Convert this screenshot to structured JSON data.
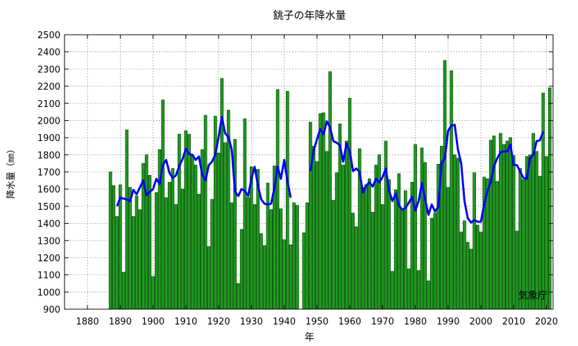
{
  "chart_data": {
    "type": "bar",
    "title": "銚子の年降水量",
    "xlabel": "年",
    "ylabel": "降水量（㎜）",
    "xlim": [
      1873,
      2022
    ],
    "ylim": [
      900,
      2500
    ],
    "x_ticks": [
      1880,
      1890,
      1900,
      1910,
      1920,
      1930,
      1940,
      1950,
      1960,
      1970,
      1980,
      1990,
      2000,
      2010,
      2020
    ],
    "y_ticks": [
      900,
      1000,
      1100,
      1200,
      1300,
      1400,
      1500,
      1600,
      1700,
      1800,
      1900,
      2000,
      2100,
      2200,
      2300,
      2400,
      2500
    ],
    "grid": true,
    "annotation": "気象庁",
    "colors": {
      "bar_fill": "#1f9b1f",
      "bar_stroke": "#0a4d0a",
      "line": "#0000ff"
    },
    "series": [
      {
        "type": "bar",
        "data": [
          [
            1887,
            1700
          ],
          [
            1888,
            1620
          ],
          [
            1889,
            1440
          ],
          [
            1890,
            1625
          ],
          [
            1891,
            1115
          ],
          [
            1892,
            1945
          ],
          [
            1893,
            1610
          ],
          [
            1894,
            1440
          ],
          [
            1895,
            1560
          ],
          [
            1896,
            1480
          ],
          [
            1897,
            1750
          ],
          [
            1898,
            1800
          ],
          [
            1899,
            1680
          ],
          [
            1900,
            1090
          ],
          [
            1901,
            1580
          ],
          [
            1902,
            1830
          ],
          [
            1903,
            2120
          ],
          [
            1904,
            1550
          ],
          [
            1905,
            1640
          ],
          [
            1906,
            1720
          ],
          [
            1907,
            1510
          ],
          [
            1908,
            1920
          ],
          [
            1909,
            1600
          ],
          [
            1910,
            1940
          ],
          [
            1911,
            1920
          ],
          [
            1912,
            1800
          ],
          [
            1913,
            1740
          ],
          [
            1914,
            1570
          ],
          [
            1915,
            1830
          ],
          [
            1916,
            2030
          ],
          [
            1917,
            1265
          ],
          [
            1918,
            1540
          ],
          [
            1919,
            2025
          ],
          [
            1920,
            1810
          ],
          [
            1921,
            2245
          ],
          [
            1922,
            1870
          ],
          [
            1923,
            2060
          ],
          [
            1924,
            1520
          ],
          [
            1925,
            1890
          ],
          [
            1926,
            1050
          ],
          [
            1927,
            1365
          ],
          [
            1928,
            2010
          ],
          [
            1929,
            1550
          ],
          [
            1930,
            1730
          ],
          [
            1931,
            1510
          ],
          [
            1932,
            1715
          ],
          [
            1933,
            1340
          ],
          [
            1934,
            1270
          ],
          [
            1935,
            1635
          ],
          [
            1936,
            1480
          ],
          [
            1937,
            1735
          ],
          [
            1938,
            2180
          ],
          [
            1939,
            1485
          ],
          [
            1940,
            1305
          ],
          [
            1941,
            2170
          ],
          [
            1942,
            1275
          ],
          [
            1943,
            1520
          ],
          [
            1944,
            1505
          ],
          [
            1946,
            1345
          ],
          [
            1947,
            1520
          ],
          [
            1948,
            1990
          ],
          [
            1949,
            1850
          ],
          [
            1950,
            1760
          ],
          [
            1951,
            2040
          ],
          [
            1952,
            2045
          ],
          [
            1953,
            1820
          ],
          [
            1954,
            2285
          ],
          [
            1955,
            1535
          ],
          [
            1956,
            1695
          ],
          [
            1957,
            1980
          ],
          [
            1958,
            1740
          ],
          [
            1959,
            1880
          ],
          [
            1960,
            2130
          ],
          [
            1961,
            1460
          ],
          [
            1962,
            1380
          ],
          [
            1963,
            1835
          ],
          [
            1964,
            1610
          ],
          [
            1965,
            1625
          ],
          [
            1966,
            1660
          ],
          [
            1967,
            1465
          ],
          [
            1968,
            1740
          ],
          [
            1969,
            1800
          ],
          [
            1970,
            1510
          ],
          [
            1971,
            1880
          ],
          [
            1972,
            1655
          ],
          [
            1973,
            1120
          ],
          [
            1974,
            1595
          ],
          [
            1975,
            1690
          ],
          [
            1976,
            1485
          ],
          [
            1977,
            1590
          ],
          [
            1978,
            1135
          ],
          [
            1979,
            1640
          ],
          [
            1980,
            1860
          ],
          [
            1981,
            1125
          ],
          [
            1982,
            1840
          ],
          [
            1983,
            1755
          ],
          [
            1984,
            1065
          ],
          [
            1985,
            1430
          ],
          [
            1986,
            1460
          ],
          [
            1987,
            1745
          ],
          [
            1988,
            1850
          ],
          [
            1989,
            2350
          ],
          [
            1990,
            1610
          ],
          [
            1991,
            2290
          ],
          [
            1992,
            1800
          ],
          [
            1993,
            1780
          ],
          [
            1994,
            1350
          ],
          [
            1995,
            1415
          ],
          [
            1996,
            1290
          ],
          [
            1997,
            1250
          ],
          [
            1998,
            1695
          ],
          [
            1999,
            1390
          ],
          [
            2000,
            1350
          ],
          [
            2001,
            1670
          ],
          [
            2002,
            1660
          ],
          [
            2003,
            1885
          ],
          [
            2004,
            1910
          ],
          [
            2005,
            1645
          ],
          [
            2006,
            1925
          ],
          [
            2007,
            1860
          ],
          [
            2008,
            1880
          ],
          [
            2009,
            1900
          ],
          [
            2010,
            1795
          ],
          [
            2011,
            1355
          ],
          [
            2012,
            1720
          ],
          [
            2013,
            1655
          ],
          [
            2014,
            1790
          ],
          [
            2015,
            1800
          ],
          [
            2016,
            1925
          ],
          [
            2017,
            1820
          ],
          [
            2018,
            1675
          ],
          [
            2019,
            2160
          ],
          [
            2020,
            1790
          ],
          [
            2021,
            2190
          ]
        ]
      },
      {
        "type": "line",
        "data": [
          [
            1889,
            1500
          ],
          [
            1890,
            1550
          ],
          [
            1891,
            1545
          ],
          [
            1892,
            1540
          ],
          [
            1893,
            1530
          ],
          [
            1894,
            1595
          ],
          [
            1895,
            1570
          ],
          [
            1896,
            1610
          ],
          [
            1897,
            1650
          ],
          [
            1898,
            1565
          ],
          [
            1899,
            1585
          ],
          [
            1900,
            1600
          ],
          [
            1901,
            1660
          ],
          [
            1902,
            1630
          ],
          [
            1903,
            1740
          ],
          [
            1904,
            1770
          ],
          [
            1905,
            1695
          ],
          [
            1906,
            1665
          ],
          [
            1907,
            1680
          ],
          [
            1908,
            1735
          ],
          [
            1909,
            1775
          ],
          [
            1910,
            1835
          ],
          [
            1911,
            1805
          ],
          [
            1912,
            1800
          ],
          [
            1913,
            1770
          ],
          [
            1914,
            1790
          ],
          [
            1915,
            1685
          ],
          [
            1916,
            1650
          ],
          [
            1917,
            1740
          ],
          [
            1918,
            1760
          ],
          [
            1919,
            1800
          ],
          [
            1920,
            1905
          ],
          [
            1921,
            2020
          ],
          [
            1922,
            1925
          ],
          [
            1923,
            1905
          ],
          [
            1924,
            1830
          ],
          [
            1925,
            1585
          ],
          [
            1926,
            1560
          ],
          [
            1927,
            1600
          ],
          [
            1928,
            1590
          ],
          [
            1929,
            1560
          ],
          [
            1930,
            1660
          ],
          [
            1931,
            1730
          ],
          [
            1932,
            1620
          ],
          [
            1933,
            1540
          ],
          [
            1934,
            1515
          ],
          [
            1935,
            1510
          ],
          [
            1936,
            1515
          ],
          [
            1937,
            1605
          ],
          [
            1938,
            1730
          ],
          [
            1939,
            1660
          ],
          [
            1940,
            1770
          ],
          [
            1941,
            1645
          ],
          [
            1942,
            1550
          ],
          [
            1948,
            1705
          ],
          [
            1949,
            1825
          ],
          [
            1950,
            1890
          ],
          [
            1951,
            1950
          ],
          [
            1952,
            1920
          ],
          [
            1953,
            1995
          ],
          [
            1954,
            1960
          ],
          [
            1955,
            1880
          ],
          [
            1956,
            1870
          ],
          [
            1957,
            1855
          ],
          [
            1958,
            1760
          ],
          [
            1959,
            1865
          ],
          [
            1960,
            1820
          ],
          [
            1961,
            1705
          ],
          [
            1962,
            1720
          ],
          [
            1963,
            1700
          ],
          [
            1964,
            1580
          ],
          [
            1965,
            1620
          ],
          [
            1966,
            1640
          ],
          [
            1967,
            1615
          ],
          [
            1968,
            1660
          ],
          [
            1969,
            1640
          ],
          [
            1970,
            1670
          ],
          [
            1971,
            1720
          ],
          [
            1972,
            1590
          ],
          [
            1973,
            1530
          ],
          [
            1974,
            1575
          ],
          [
            1975,
            1505
          ],
          [
            1976,
            1480
          ],
          [
            1977,
            1490
          ],
          [
            1978,
            1520
          ],
          [
            1979,
            1555
          ],
          [
            1980,
            1475
          ],
          [
            1981,
            1530
          ],
          [
            1982,
            1635
          ],
          [
            1983,
            1540
          ],
          [
            1984,
            1450
          ],
          [
            1985,
            1510
          ],
          [
            1986,
            1470
          ],
          [
            1987,
            1495
          ],
          [
            1988,
            1750
          ],
          [
            1989,
            1780
          ],
          [
            1990,
            1940
          ],
          [
            1991,
            1970
          ],
          [
            1992,
            1975
          ],
          [
            1993,
            1830
          ],
          [
            1994,
            1750
          ],
          [
            1995,
            1530
          ],
          [
            1996,
            1430
          ],
          [
            1997,
            1405
          ],
          [
            1998,
            1420
          ],
          [
            1999,
            1410
          ],
          [
            2000,
            1410
          ],
          [
            2001,
            1510
          ],
          [
            2002,
            1590
          ],
          [
            2003,
            1640
          ],
          [
            2004,
            1735
          ],
          [
            2005,
            1780
          ],
          [
            2006,
            1815
          ],
          [
            2007,
            1820
          ],
          [
            2008,
            1820
          ],
          [
            2009,
            1860
          ],
          [
            2010,
            1740
          ],
          [
            2011,
            1740
          ],
          [
            2012,
            1700
          ],
          [
            2013,
            1665
          ],
          [
            2014,
            1660
          ],
          [
            2015,
            1780
          ],
          [
            2016,
            1800
          ],
          [
            2017,
            1880
          ],
          [
            2018,
            1885
          ],
          [
            2019,
            1935
          ]
        ]
      }
    ]
  }
}
